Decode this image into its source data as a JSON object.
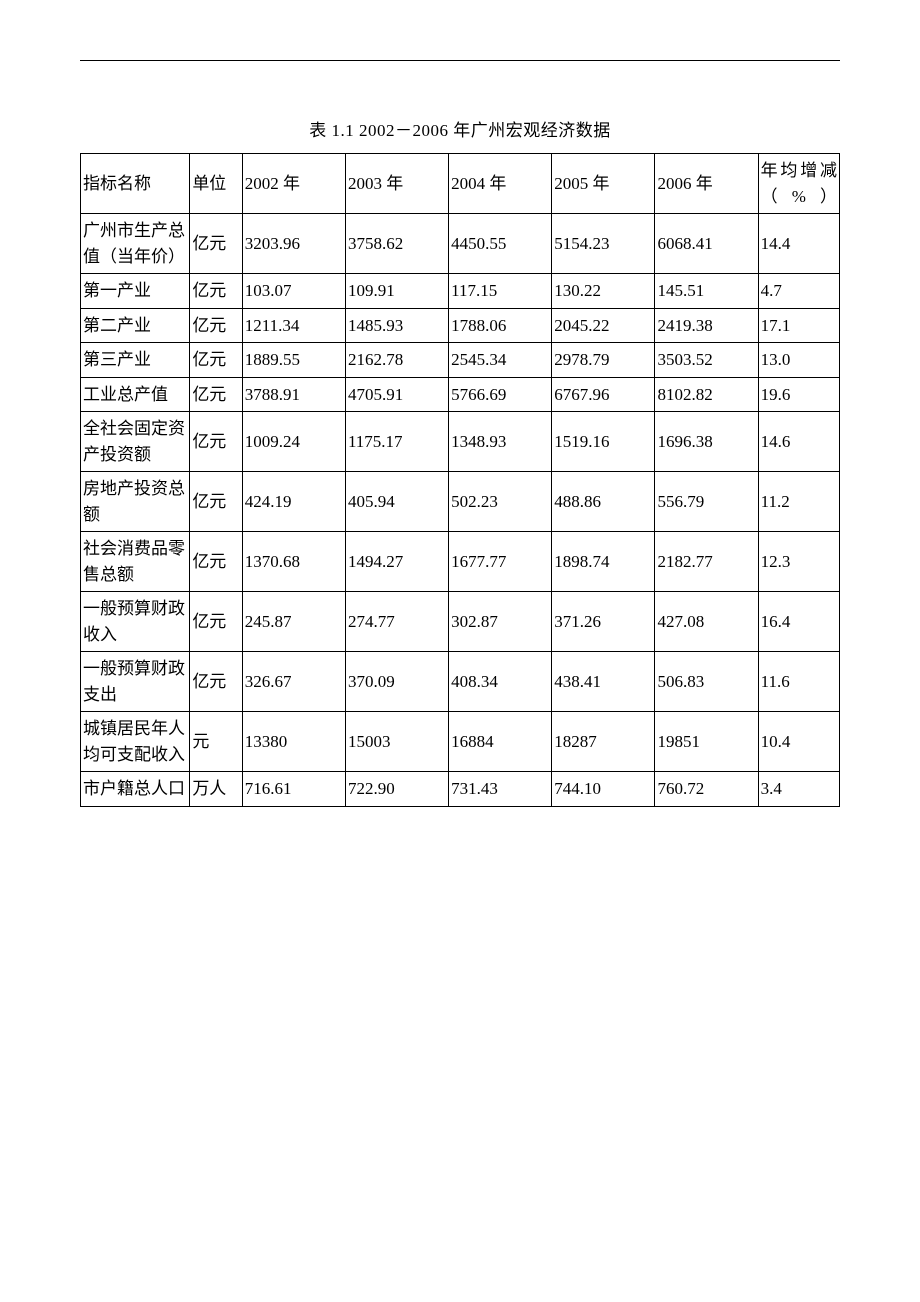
{
  "title": "表 1.1 2002－2006 年广州宏观经济数据",
  "columns": {
    "indicator": "指标名称",
    "unit": "单位",
    "y2002": "2002 年",
    "y2003": "2003 年",
    "y2004": "2004 年",
    "y2005": "2005 年",
    "y2006": "2006 年",
    "growth_line1": "年均增",
    "growth_line2": "减（%）"
  },
  "rows": [
    {
      "indicator": "广州市生产总值（当年价）",
      "unit": "亿元",
      "y2002": "3203.96",
      "y2003": "3758.62",
      "y2004": "4450.55",
      "y2005": "5154.23",
      "y2006": "6068.41",
      "growth": "14.4"
    },
    {
      "indicator": "第一产业",
      "unit": "亿元",
      "y2002": "103.07",
      "y2003": "109.91",
      "y2004": "117.15",
      "y2005": "130.22",
      "y2006": "145.51",
      "growth": "4.7"
    },
    {
      "indicator": "第二产业",
      "unit": "亿元",
      "y2002": "1211.34",
      "y2003": "1485.93",
      "y2004": "1788.06",
      "y2005": "2045.22",
      "y2006": "2419.38",
      "growth": "17.1"
    },
    {
      "indicator": "第三产业",
      "unit": "亿元",
      "y2002": "1889.55",
      "y2003": "2162.78",
      "y2004": "2545.34",
      "y2005": "2978.79",
      "y2006": "3503.52",
      "growth": "13.0"
    },
    {
      "indicator": "工业总产值",
      "unit": "亿元",
      "y2002": "3788.91",
      "y2003": "4705.91",
      "y2004": "5766.69",
      "y2005": "6767.96",
      "y2006": "8102.82",
      "growth": "19.6"
    },
    {
      "indicator": "全社会固定资产投资额",
      "unit": "亿元",
      "y2002": "1009.24",
      "y2003": "1175.17",
      "y2004": "1348.93",
      "y2005": "1519.16",
      "y2006": "1696.38",
      "growth": "14.6"
    },
    {
      "indicator": "房地产投资总额",
      "unit": "亿元",
      "y2002": "424.19",
      "y2003": "405.94",
      "y2004": "502.23",
      "y2005": "488.86",
      "y2006": "556.79",
      "growth": "11.2"
    },
    {
      "indicator": "社会消费品零售总额",
      "unit": "亿元",
      "y2002": "1370.68",
      "y2003": "1494.27",
      "y2004": "1677.77",
      "y2005": "1898.74",
      "y2006": "2182.77",
      "growth": "12.3"
    },
    {
      "indicator": "一般预算财政收入",
      "unit": "亿元",
      "y2002": "245.87",
      "y2003": "274.77",
      "y2004": "302.87",
      "y2005": "371.26",
      "y2006": "427.08",
      "growth": "16.4"
    },
    {
      "indicator": "一般预算财政支出",
      "unit": "亿元",
      "y2002": "326.67",
      "y2003": "370.09",
      "y2004": "408.34",
      "y2005": "438.41",
      "y2006": "506.83",
      "growth": "11.6"
    },
    {
      "indicator": "城镇居民年人均可支配收入",
      "unit": "元",
      "y2002": "13380",
      "y2003": "15003",
      "y2004": "16884",
      "y2005": "18287",
      "y2006": "19851",
      "growth": "10.4"
    },
    {
      "indicator": "市户籍总人口",
      "unit": "万人",
      "y2002": "716.61",
      "y2003": "722.90",
      "y2004": "731.43",
      "y2005": "744.10",
      "y2006": "760.72",
      "growth": "3.4"
    }
  ],
  "styling": {
    "font_family": "SimSun",
    "font_size_pt": 12,
    "border_color": "#000000",
    "background_color": "#ffffff",
    "text_color": "#000000",
    "column_widths_pct": {
      "indicator": 12.5,
      "unit": 6.0,
      "year_each": 11.8,
      "growth": 9.3
    }
  }
}
